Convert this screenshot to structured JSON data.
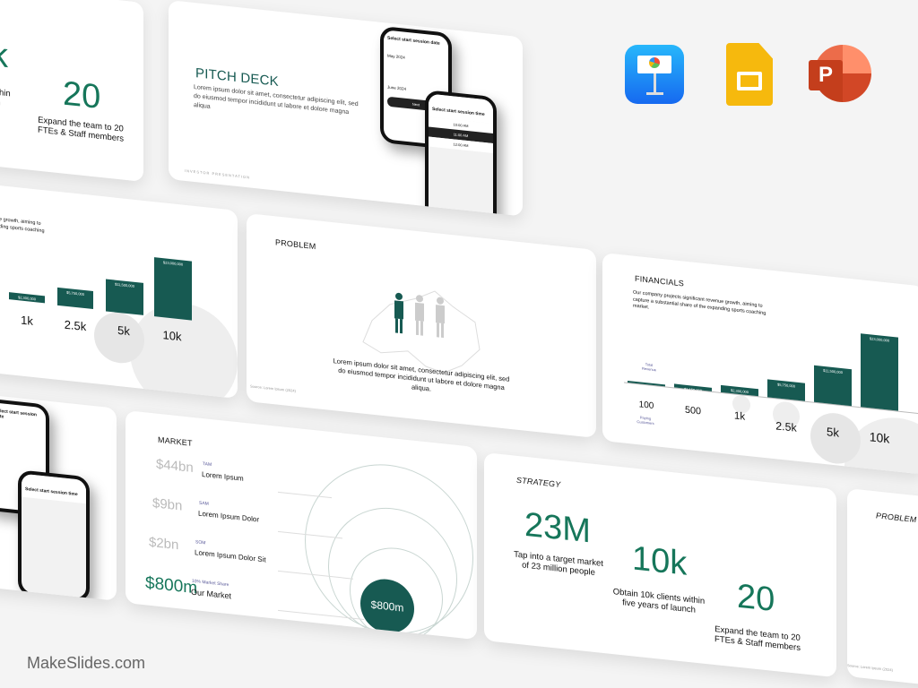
{
  "brand": {
    "name": "MakeSlides.com"
  },
  "app_icons": [
    {
      "name": "keynote-icon"
    },
    {
      "name": "google-slides-icon"
    },
    {
      "name": "powerpoint-icon",
      "letter": "P"
    }
  ],
  "colors": {
    "accent": "#175a52",
    "green_text": "#16765a",
    "background": "#f4f4f4"
  },
  "strategy": {
    "title": "STRATEGY",
    "stats": [
      {
        "value": "23M",
        "caption": "Tap into a target market of 23 million people"
      },
      {
        "value": "10k",
        "caption": "Obtain 10k clients within five years of launch"
      },
      {
        "value": "20",
        "caption": "Expand the team to 20 FTEs & Staff members"
      }
    ],
    "partial_top": {
      "value": "k",
      "caption": "s within\nunch",
      "value2": "20",
      "caption2": "Expand the team to 20 FTEs & Staff members"
    }
  },
  "pitch": {
    "title": "PITCH DECK",
    "body": "Lorem ipsum dolor sit amet, consectetur adipiscing elit, sed do eiusmod tempor incididunt ut labore et dolore magna aliqua",
    "footer": "INVESTOR PRESENTATION",
    "phone1": {
      "title": "Select start session date",
      "month1": "May 2024",
      "month2": "June 2024",
      "button": "Next"
    },
    "phone2": {
      "title": "Select start session time",
      "slots": [
        "10:00 AM",
        "11:00 AM",
        "12:00 AM"
      ]
    }
  },
  "financials": {
    "title": "FINANCIALS",
    "body": "Our company projects significant revenue growth, aiming to capture a substantial share of the expanding sports coaching market.",
    "revenue_label": "Total Revenue",
    "customers_label": "Paying Customers",
    "partial_body": "ue growth, aiming to\nnding sports coaching"
  },
  "chart_data": {
    "type": "bar",
    "categories": [
      "100",
      "500",
      "1k",
      "2.5k",
      "5k",
      "10k"
    ],
    "values": [
      230000,
      1150000,
      2300000,
      5750000,
      11500000,
      23000000
    ],
    "data_labels": [
      "",
      "$1,150,000",
      "$2,300,000",
      "$5,750,000",
      "$11,500,000",
      "$23,000,000"
    ],
    "xlabel": "Paying Customers",
    "ylabel": "Total Revenue"
  },
  "problem": {
    "title": "PROBLEM",
    "body": "Lorem ipsum dolor sit amet, consectetur adipiscing elit, sed do eiusmod tempor incididunt ut labore et dolore magna aliqua.",
    "source": "Source: Lorem Ipsum (2024)"
  },
  "market": {
    "title": "MARKET",
    "rows": [
      {
        "value": "$44bn",
        "tag": "TAM",
        "label": "Lorem Ipsum"
      },
      {
        "value": "$9bn",
        "tag": "SAM",
        "label": "Lorem Ipsum Dolor"
      },
      {
        "value": "$2bn",
        "tag": "SOM",
        "label": "Lorem Ipsum Dolor Sit"
      },
      {
        "value": "$800m",
        "tag": "10% Market Share",
        "label": "Our Market"
      }
    ],
    "circle_value": "$800m"
  }
}
